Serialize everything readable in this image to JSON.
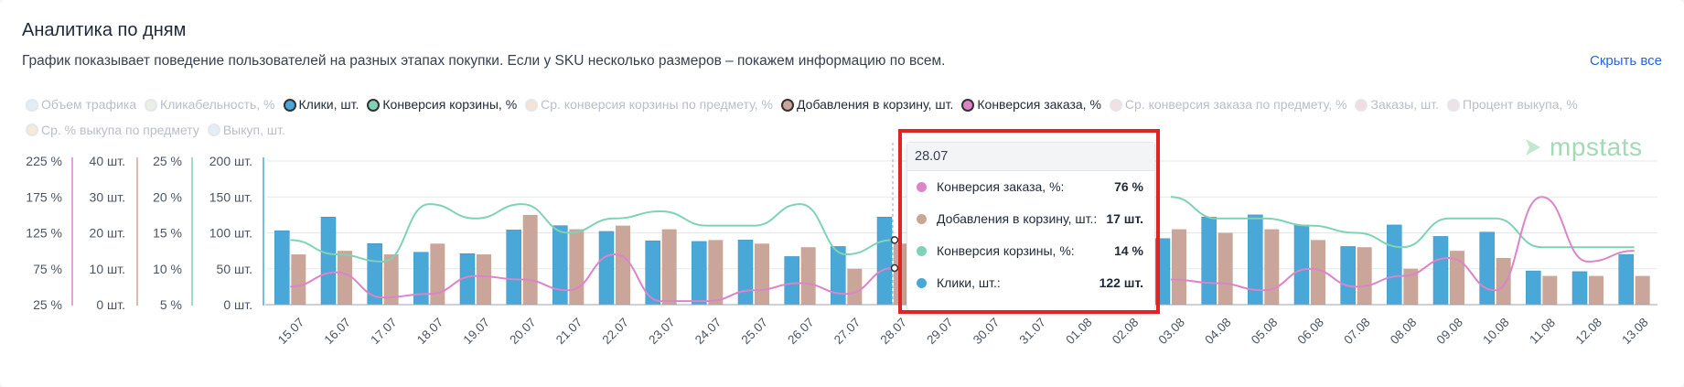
{
  "header": {
    "title": "Аналитика по дням",
    "subtitle": "График показывает поведение пользователей на разных этапах покупки. Если у SKU несколько размеров – покажем информацию по всем.",
    "hide_link": "Скрыть все"
  },
  "legend": [
    {
      "label": "Объем трафика",
      "active": false,
      "color": "#d7ecf6"
    },
    {
      "label": "Кликабельность, %",
      "active": false,
      "color": "#e6eadf"
    },
    {
      "label": "Клики, шт.",
      "active": true,
      "color": "#4aa8d8"
    },
    {
      "label": "Конверсия корзины, %",
      "active": true,
      "color": "#7fd3b4"
    },
    {
      "label": "Ср. конверсия корзины по предмету, %",
      "active": false,
      "color": "#f7dcc6"
    },
    {
      "label": "Добавления в корзину, шт.",
      "active": true,
      "color": "#c9a699"
    },
    {
      "label": "Конверсия заказа, %",
      "active": true,
      "color": "#dc84c8"
    },
    {
      "label": "Ср. конверсия заказа по предмету, %",
      "active": false,
      "color": "#f3d6de"
    },
    {
      "label": "Заказы, шт.",
      "active": false,
      "color": "#f1d4d8"
    },
    {
      "label": "Процент выкупа, %",
      "active": false,
      "color": "#e8dbe3"
    },
    {
      "label": "Ср. % выкупа по предмету",
      "active": false,
      "color": "#f4e6c8"
    },
    {
      "label": "Выкуп, шт.",
      "active": false,
      "color": "#dcebf3"
    }
  ],
  "axes": {
    "order_conv_pct": [
      "225 %",
      "175 %",
      "125 %",
      "75 %",
      "25 %"
    ],
    "cart_adds": [
      "40 шт.",
      "30 шт.",
      "20 шт.",
      "10 шт.",
      "0 шт."
    ],
    "cart_conv_pct": [
      "25 %",
      "20 %",
      "15 %",
      "10 %",
      "5 %"
    ],
    "clicks": [
      "200 шт.",
      "150 шт.",
      "100 шт.",
      "50 шт.",
      "0 шт."
    ]
  },
  "logo": {
    "text": "mpstats"
  },
  "tooltip": {
    "date": "28.07",
    "rows": [
      {
        "label": "Конверсия заказа, %:",
        "value": "76 %",
        "color": "#dc84c8"
      },
      {
        "label": "Добавления в корзину, шт.:",
        "value": "17 шт.",
        "color": "#c9a699"
      },
      {
        "label": "Конверсия корзины, %:",
        "value": "14 %",
        "color": "#7fd3b4"
      },
      {
        "label": "Клики, шт.:",
        "value": "122 шт.",
        "color": "#4aa8d8"
      }
    ]
  },
  "chart_data": {
    "type": "bar",
    "categories": [
      "15.07",
      "16.07",
      "17.07",
      "18.07",
      "19.07",
      "20.07",
      "21.07",
      "22.07",
      "23.07",
      "24.07",
      "25.07",
      "26.07",
      "27.07",
      "28.07",
      "29.07",
      "30.07",
      "31.07",
      "01.08",
      "02.08",
      "03.08",
      "04.08",
      "05.08",
      "06.08",
      "07.08",
      "08.08",
      "09.08",
      "10.08",
      "11.08",
      "12.08",
      "13.08"
    ],
    "series": [
      {
        "name": "Клики, шт.",
        "kind": "bar",
        "axis": "clicks",
        "color": "#4aa8d8",
        "values": [
          103,
          122,
          85,
          73,
          71,
          104,
          110,
          102,
          89,
          88,
          90,
          67,
          81,
          122,
          null,
          null,
          null,
          null,
          null,
          92,
          122,
          125,
          111,
          81,
          111,
          95,
          101,
          47,
          46,
          70
        ]
      },
      {
        "name": "Добавления в корзину, шт.",
        "kind": "bar",
        "axis": "cart_adds",
        "color": "#c9a699",
        "values": [
          14,
          15,
          14,
          17,
          14,
          25,
          21,
          22,
          21,
          18,
          17,
          16,
          10,
          17,
          null,
          null,
          null,
          null,
          null,
          21,
          20,
          21,
          18,
          16,
          10,
          15,
          13,
          8,
          8,
          8
        ]
      },
      {
        "name": "Конверсия корзины, %",
        "kind": "line",
        "axis": "cart_conv_pct",
        "color": "#7fd3b4",
        "values": [
          14,
          12,
          11,
          19,
          17,
          19,
          15,
          17,
          18,
          16,
          16,
          19,
          12,
          14,
          null,
          null,
          null,
          null,
          null,
          20,
          17,
          17,
          16,
          15,
          13,
          17,
          17,
          13,
          13,
          13
        ]
      },
      {
        "name": "Конверсия заказа, %",
        "kind": "line",
        "axis": "order_conv_pct",
        "color": "#dc84c8",
        "values": [
          50,
          70,
          35,
          40,
          65,
          60,
          45,
          95,
          30,
          30,
          45,
          55,
          40,
          76,
          null,
          null,
          null,
          null,
          null,
          60,
          55,
          45,
          75,
          50,
          65,
          90,
          45,
          175,
          85,
          100
        ]
      }
    ],
    "ylim_clicks": [
      0,
      200
    ],
    "ylim_cart_adds": [
      0,
      40
    ],
    "ylim_cart_conv_pct": [
      5,
      25
    ],
    "ylim_order_conv_pct": [
      25,
      225
    ],
    "grid": true
  }
}
